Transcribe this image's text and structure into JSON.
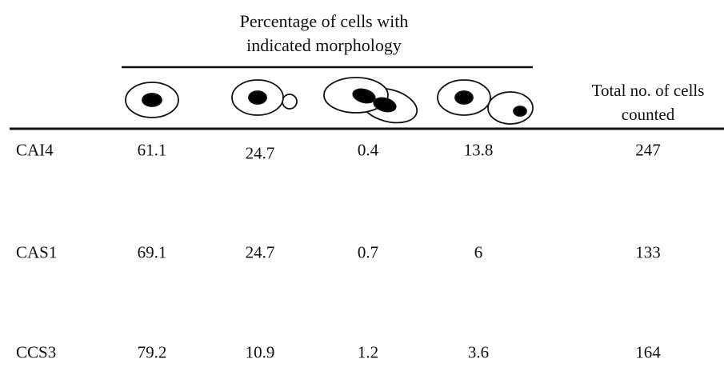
{
  "header": {
    "title": "Percentage of cells with indicated morphology",
    "total_label": "Total no. of cells counted"
  },
  "table": {
    "rows": [
      [
        "CAI4",
        61.1,
        24.7,
        0.4,
        13.8,
        247
      ],
      [
        "CAS1",
        69.1,
        24.7,
        0.7,
        6,
        133
      ],
      [
        "CCS3",
        79.2,
        10.9,
        1.2,
        3.6,
        164
      ]
    ]
  }
}
